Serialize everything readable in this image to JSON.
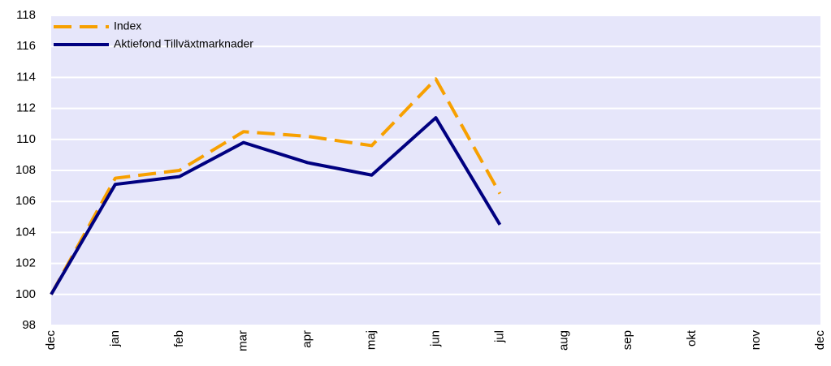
{
  "chart_data": {
    "type": "line",
    "categories": [
      "dec",
      "jan",
      "feb",
      "mar",
      "apr",
      "maj",
      "jun",
      "jul",
      "aug",
      "sep",
      "okt",
      "nov",
      "dec"
    ],
    "series": [
      {
        "name": "Index",
        "color": "#f7a000",
        "dashed": true,
        "values": [
          100,
          107.5,
          108,
          110.5,
          110.2,
          109.6,
          113.9,
          106.5,
          null,
          null,
          null,
          null,
          null
        ]
      },
      {
        "name": "Aktiefond Tillväxtmarknader",
        "color": "#000080",
        "dashed": false,
        "values": [
          100,
          107.1,
          107.6,
          109.8,
          108.5,
          107.7,
          111.4,
          104.5,
          null,
          null,
          null,
          null,
          null
        ]
      }
    ],
    "ylim": [
      98,
      118
    ],
    "yticks": [
      98,
      100,
      102,
      104,
      106,
      108,
      110,
      112,
      114,
      116,
      118
    ],
    "grid": true,
    "legend": "top-left"
  }
}
